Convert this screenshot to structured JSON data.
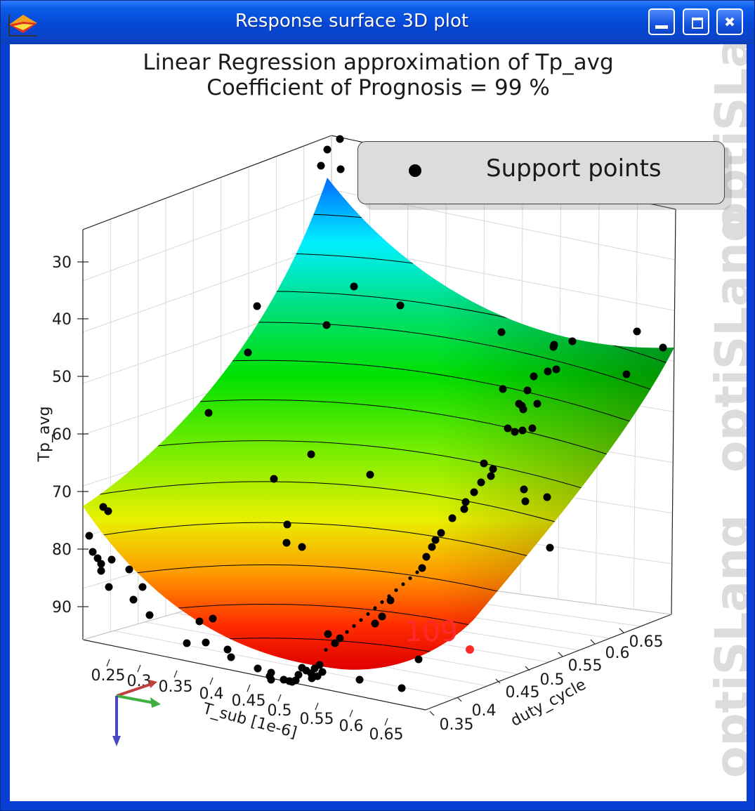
{
  "window": {
    "title": "Response surface 3D plot",
    "controls": [
      "minimize",
      "maximize",
      "close"
    ]
  },
  "plot": {
    "title_line1": "Linear Regression  approximation of Tp_avg",
    "title_line2": "Coefficient of Prognosis = 99 %",
    "legend_label": "Support points",
    "watermark": "optiSLang",
    "highlight_label": "109",
    "colors": {
      "accent": "#0a4fe0",
      "highlight": "#ff2a2a",
      "points": "#000000"
    }
  },
  "chart_data": {
    "type": "scatter",
    "title": "Linear Regression  approximation of Tp_avg",
    "subtitle": "Coefficient of Prognosis = 99 %",
    "xlabel": "T_sub [1e-6]",
    "ylabel": "duty_cycle",
    "zlabel": "Tp_avg",
    "x_ticks": [
      "0.25",
      "0.3",
      "0.35",
      "0.4",
      "0.45",
      "0.5",
      "0.55",
      "0.6",
      "0.65"
    ],
    "y_ticks": [
      "0.35",
      "0.4",
      "0.45",
      "0.5",
      "0.55",
      "0.6",
      "0.65"
    ],
    "z_ticks": [
      "30",
      "40",
      "50",
      "60",
      "70",
      "80",
      "90"
    ],
    "z_inverted": true,
    "surface": "quadratic response surface, colormap red (high Tp_avg) to blue (low Tp_avg), with contour lines",
    "legend": [
      "Support points"
    ],
    "legend_placement": "top-right",
    "highlighted_point": {
      "label": "109"
    },
    "grid": true
  }
}
